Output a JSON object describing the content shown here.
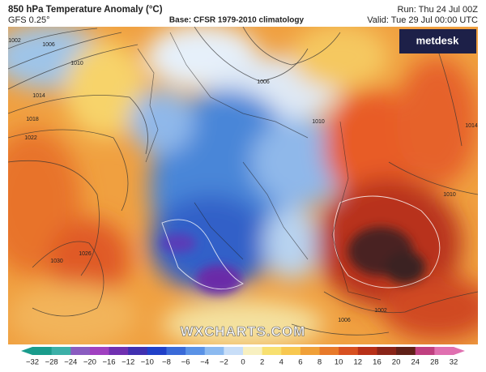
{
  "header": {
    "title": "850 hPa Temperature Anomaly (°C)",
    "model": "GFS 0.25°",
    "base": "Base: CFSR 1979-2010 climatology",
    "run": "Run: Thu 24 Jul 00Z",
    "valid": "Valid: Tue 29 Jul 00:00 UTC"
  },
  "logo": "metdesk",
  "watermark": "WXCHARTS.COM",
  "isobar_labels": [
    "1002",
    "1006",
    "1010",
    "1014",
    "1018",
    "1022",
    "1030",
    "1026",
    "1006",
    "1010",
    "1014",
    "1010",
    "1002",
    "1006"
  ],
  "colorbar": {
    "ticks": [
      "−32",
      "−28",
      "−24",
      "−20",
      "−16",
      "−12",
      "−10",
      "−8",
      "−6",
      "−4",
      "−2",
      "0",
      "2",
      "4",
      "6",
      "8",
      "10",
      "12",
      "16",
      "20",
      "24",
      "28",
      "32"
    ]
  }
}
